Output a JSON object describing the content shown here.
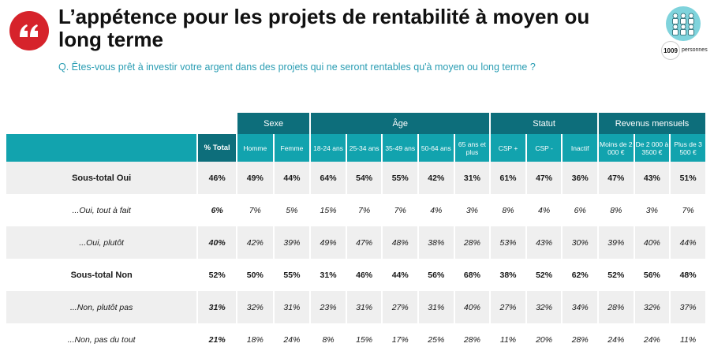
{
  "header": {
    "title": "L’appétence pour les projets de rentabilité à moyen ou long terme",
    "subtitle": "Q. Êtes-vous prêt à investir votre argent dans des projets qui ne seront rentables qu'à moyen ou long terme ?",
    "quote_icon": "quote-mark-icon",
    "respondents_count": "1009",
    "respondents_label": "personnes"
  },
  "table": {
    "groups": [
      "Sexe",
      "Âge",
      "Statut",
      "Revenus mensuels"
    ],
    "total_header": "% Total",
    "columns": [
      "Homme",
      "Femme",
      "18-24 ans",
      "25-34 ans",
      "35-49 ans",
      "50-64 ans",
      "65 ans et plus",
      "CSP +",
      "CSP -",
      "Inactif",
      "Moins de 2 000 €",
      "De 2 000 à 3500 €",
      "Plus de 3 500 €"
    ],
    "rows": [
      {
        "label": "Sous-total Oui",
        "total": "46%",
        "values": [
          "49%",
          "44%",
          "64%",
          "54%",
          "55%",
          "42%",
          "31%",
          "61%",
          "47%",
          "36%",
          "47%",
          "43%",
          "51%"
        ]
      },
      {
        "label": "...Oui, tout à fait",
        "total": "6%",
        "values": [
          "7%",
          "5%",
          "15%",
          "7%",
          "7%",
          "4%",
          "3%",
          "8%",
          "4%",
          "6%",
          "8%",
          "3%",
          "7%"
        ]
      },
      {
        "label": "...Oui, plutôt",
        "total": "40%",
        "values": [
          "42%",
          "39%",
          "49%",
          "47%",
          "48%",
          "38%",
          "28%",
          "53%",
          "43%",
          "30%",
          "39%",
          "40%",
          "44%"
        ]
      },
      {
        "label": "Sous-total Non",
        "total": "52%",
        "values": [
          "50%",
          "55%",
          "31%",
          "46%",
          "44%",
          "56%",
          "68%",
          "38%",
          "52%",
          "62%",
          "52%",
          "56%",
          "48%"
        ]
      },
      {
        "label": "...Non, plutôt pas",
        "total": "31%",
        "values": [
          "32%",
          "31%",
          "23%",
          "31%",
          "27%",
          "31%",
          "40%",
          "27%",
          "32%",
          "34%",
          "28%",
          "32%",
          "37%"
        ]
      },
      {
        "label": "...Non, pas du tout",
        "total": "21%",
        "values": [
          "18%",
          "24%",
          "8%",
          "15%",
          "17%",
          "25%",
          "28%",
          "11%",
          "20%",
          "28%",
          "24%",
          "24%",
          "11%"
        ]
      }
    ]
  },
  "colors": {
    "group_header": "#0d6e7b",
    "column_header": "#12a3ae",
    "quote_badge": "#d6232b",
    "subtitle": "#2a9db3",
    "row_shade": "#efefef"
  }
}
